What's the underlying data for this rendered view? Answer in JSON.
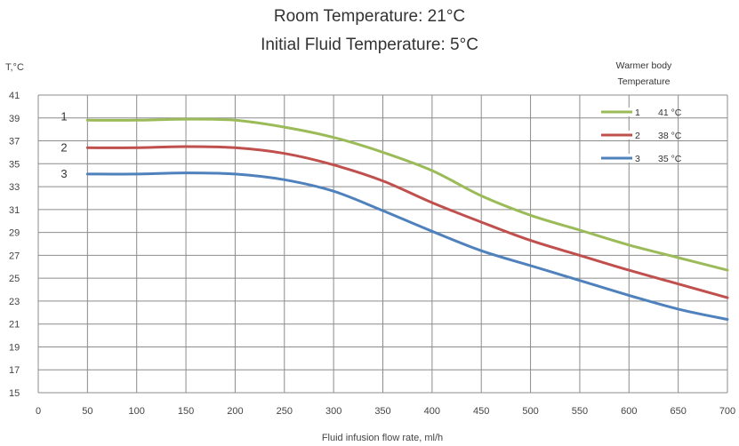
{
  "chart_data": {
    "type": "line",
    "title": "Room Temperature: 21°C",
    "subtitle": "Initial Fluid Temperature: 5°C",
    "xlabel": "Fluid infusion flow rate, ml/h",
    "ylabel": "T,°C",
    "xlim": [
      0,
      700
    ],
    "ylim": [
      15,
      41
    ],
    "x_ticks": [
      0,
      50,
      100,
      150,
      200,
      250,
      300,
      350,
      400,
      450,
      500,
      550,
      600,
      650,
      700
    ],
    "y_ticks": [
      15,
      17,
      19,
      21,
      23,
      25,
      27,
      29,
      31,
      33,
      35,
      37,
      39,
      41
    ],
    "grid": true,
    "legend": {
      "title_line1": "Warmer body",
      "title_line2": "Temperature",
      "placement": "top-right"
    },
    "series": [
      {
        "name": "1",
        "label": "41 °C",
        "color": "#9bbb59",
        "x": [
          50,
          100,
          150,
          200,
          250,
          300,
          350,
          400,
          450,
          500,
          550,
          600,
          650,
          700
        ],
        "y": [
          38.8,
          38.8,
          38.9,
          38.8,
          38.2,
          37.3,
          36.0,
          34.4,
          32.2,
          30.5,
          29.2,
          27.9,
          26.8,
          25.7
        ]
      },
      {
        "name": "2",
        "label": "38 °C",
        "color": "#c0504d",
        "x": [
          50,
          100,
          150,
          200,
          250,
          300,
          350,
          400,
          450,
          500,
          550,
          600,
          650,
          700
        ],
        "y": [
          36.4,
          36.4,
          36.5,
          36.4,
          35.9,
          34.9,
          33.5,
          31.6,
          29.9,
          28.3,
          27.0,
          25.7,
          24.5,
          23.3
        ]
      },
      {
        "name": "3",
        "label": "35 °C",
        "color": "#4f81bd",
        "x": [
          50,
          100,
          150,
          200,
          250,
          300,
          350,
          400,
          450,
          500,
          550,
          600,
          650,
          700
        ],
        "y": [
          34.1,
          34.1,
          34.2,
          34.1,
          33.6,
          32.6,
          30.9,
          29.1,
          27.4,
          26.1,
          24.8,
          23.5,
          22.3,
          21.4
        ]
      }
    ]
  }
}
